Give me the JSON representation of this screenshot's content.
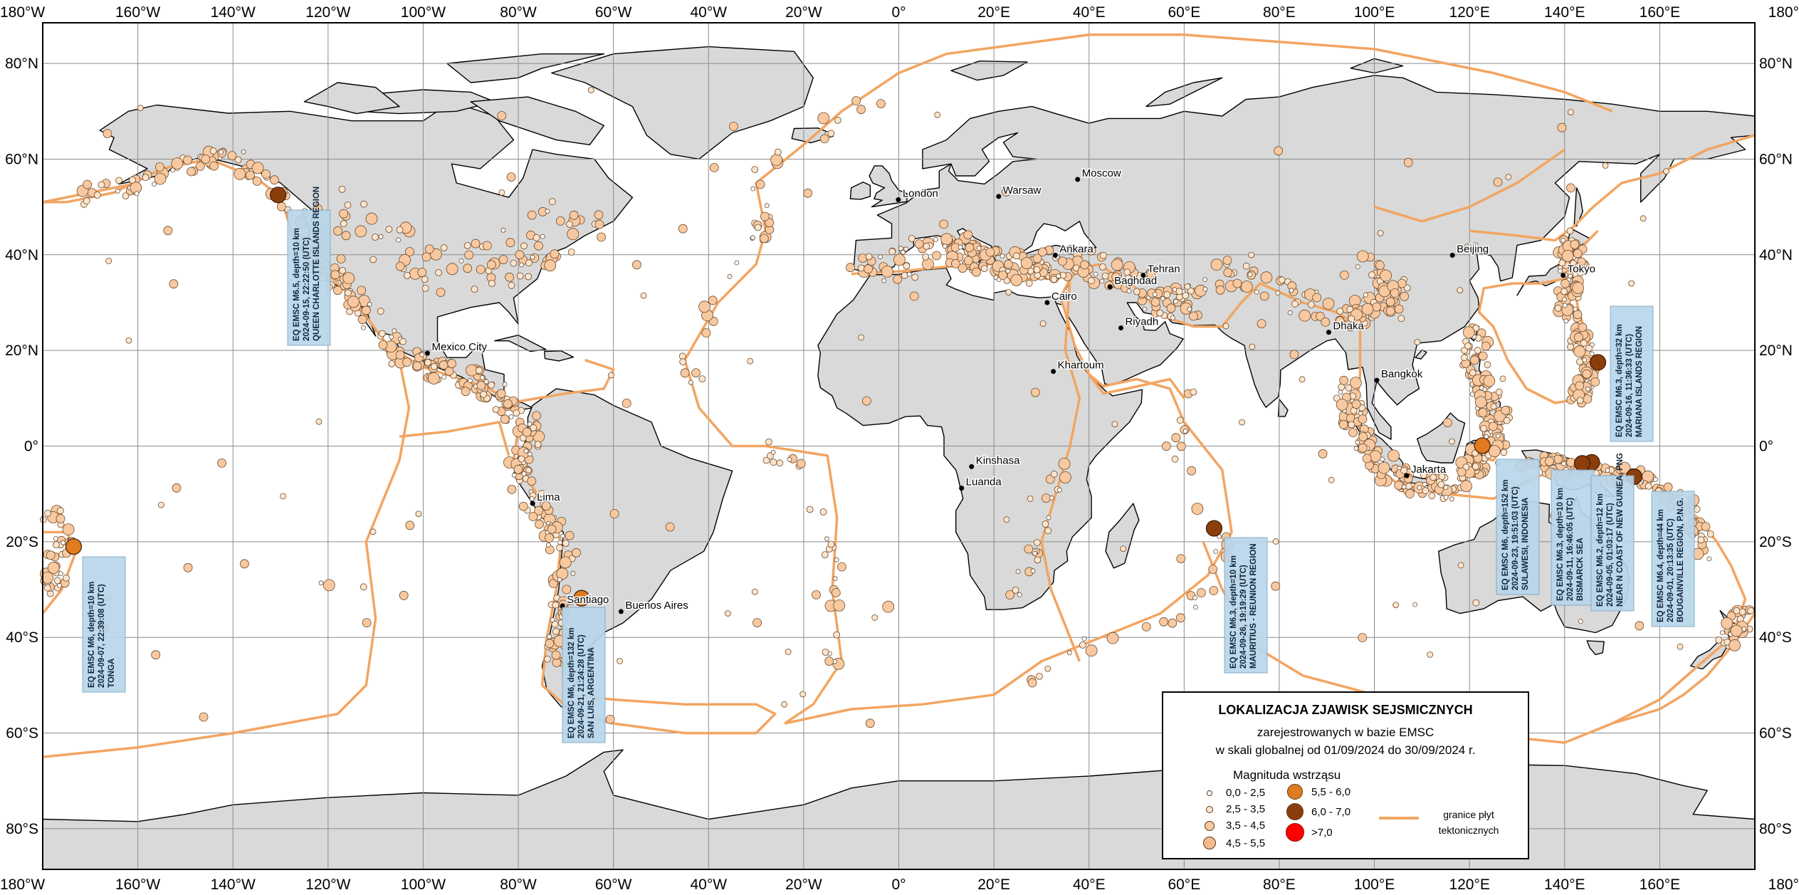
{
  "map": {
    "lon_labels": [
      "180°W",
      "160°W",
      "140°W",
      "120°W",
      "100°W",
      "80°W",
      "60°W",
      "40°W",
      "20°W",
      "0°",
      "20°E",
      "40°E",
      "60°E",
      "80°E",
      "100°E",
      "120°E",
      "140°E",
      "160°E",
      "180°"
    ],
    "lat_labels": [
      "80°N",
      "60°N",
      "40°N",
      "20°N",
      "0°",
      "20°S",
      "40°S",
      "60°S",
      "80°S"
    ],
    "colors": {
      "land": "#d9d9d9",
      "ocean": "#ffffff",
      "plate_line": "#f2a562",
      "event": "#f8c9a0",
      "event_mid": "#e07b1f",
      "event_big": "#8b3e0c",
      "callout_bg": "#b9d6ea"
    },
    "cities": [
      {
        "name": "London",
        "lon": -0.1,
        "lat": 51.5
      },
      {
        "name": "Warsaw",
        "lon": 21.0,
        "lat": 52.2
      },
      {
        "name": "Moscow",
        "lon": 37.6,
        "lat": 55.75
      },
      {
        "name": "Ankara",
        "lon": 32.9,
        "lat": 39.9
      },
      {
        "name": "Baghdad",
        "lon": 44.4,
        "lat": 33.3
      },
      {
        "name": "Tehran",
        "lon": 51.4,
        "lat": 35.7
      },
      {
        "name": "Cairo",
        "lon": 31.2,
        "lat": 30.0
      },
      {
        "name": "Riyadh",
        "lon": 46.7,
        "lat": 24.7
      },
      {
        "name": "Khartoum",
        "lon": 32.5,
        "lat": 15.6
      },
      {
        "name": "Kinshasa",
        "lon": 15.3,
        "lat": -4.3
      },
      {
        "name": "Luanda",
        "lon": 13.2,
        "lat": -8.8
      },
      {
        "name": "Beijing",
        "lon": 116.4,
        "lat": 39.9
      },
      {
        "name": "Tokyo",
        "lon": 139.7,
        "lat": 35.7
      },
      {
        "name": "Dhaka",
        "lon": 90.4,
        "lat": 23.8
      },
      {
        "name": "Bangkok",
        "lon": 100.5,
        "lat": 13.75
      },
      {
        "name": "Jakarta",
        "lon": 106.8,
        "lat": -6.2
      },
      {
        "name": "Mexico City",
        "lon": -99.1,
        "lat": 19.4
      },
      {
        "name": "Lima",
        "lon": -77.0,
        "lat": -12.0
      },
      {
        "name": "Santiago",
        "lon": -70.7,
        "lat": -33.4
      },
      {
        "name": "Buenos Aires",
        "lon": -58.4,
        "lat": -34.6
      }
    ],
    "major_events": [
      {
        "lines": [
          "EQ EMSC M6.5, depth=10 km",
          "2024-09-15, 22:22:50 (UTC)",
          "QUEEN CHARLOTTE ISLANDS REGION"
        ],
        "lon": -130.5,
        "lat": 52.5,
        "mag": 6.5
      },
      {
        "lines": [
          "EQ EMSC M6, depth=10 km",
          "2024-09-07, 22:39:08 (UTC)",
          "TONGA"
        ],
        "lon": -173.5,
        "lat": -21.0,
        "mag": 6.0
      },
      {
        "lines": [
          "EQ EMSC M6, depth=132 km",
          "2024-09-21, 21:24:28 (UTC)",
          "SAN LUIS, ARGENTINA"
        ],
        "lon": -66.7,
        "lat": -31.8,
        "mag": 6.0
      },
      {
        "lines": [
          "EQ EMSC M6.3, depth=10 km",
          "2024-09-26, 19:19:29 (UTC)",
          "MAURITIUS - REUNION REGION"
        ],
        "lon": 66.3,
        "lat": -17.2,
        "mag": 6.3
      },
      {
        "lines": [
          "EQ EMSC M6, depth=152 km",
          "2024-09-23, 19:51:03 (UTC)",
          "SULAWESI, INDONESIA"
        ],
        "lon": 122.7,
        "lat": 0.1,
        "mag": 6.0
      },
      {
        "lines": [
          "EQ EMSC M6.3, depth=10 km",
          "2024-09-11, 16:46:05 (UTC)",
          "BISMARCK SEA"
        ],
        "lon": 145.7,
        "lat": -3.4,
        "mag": 6.3
      },
      {
        "lines": [
          "EQ EMSC M6.2, depth=12 km",
          "2024-09-05, 01:03:17 (UTC)",
          "NEAR N COAST OF NEW GUINEA, PNG"
        ],
        "lon": 143.7,
        "lat": -3.6,
        "mag": 6.2
      },
      {
        "lines": [
          "EQ EMSC M6.4, depth=44 km",
          "2024-09-01, 20:13:35 (UTC)",
          "BOUGAINVILLE REGION, P.N.G."
        ],
        "lon": 154.6,
        "lat": -6.4,
        "mag": 6.4
      },
      {
        "lines": [
          "EQ EMSC M6.3, depth=32 km",
          "2024-09-16, 11:36:33 (UTC)",
          "MARIANA ISLANDS REGION"
        ],
        "lon": 147.0,
        "lat": 17.5,
        "mag": 6.3
      }
    ]
  },
  "legend": {
    "title": "LOKALIZACJA ZJAWISK SEJSMICZNYCH",
    "subtitle_1": "zarejestrowanych w bazie EMSC",
    "subtitle_2": "w skali globalnej od 01/09/2024 do 30/09/2024 r.",
    "magnitude_heading": "Magnituda wstrząsu",
    "classes": [
      {
        "label": "0,0 - 2,5",
        "color": "#ffffff"
      },
      {
        "label": "2,5 - 3,5",
        "color": "#fde4cc"
      },
      {
        "label": "3,5 - 4,5",
        "color": "#f8c9a0"
      },
      {
        "label": "4,5 - 5,5",
        "color": "#f5bb8c"
      },
      {
        "label": "5,5 - 6,0",
        "color": "#e07b1f"
      },
      {
        "label": "6,0 - 7,0",
        "color": "#8b3e0c"
      },
      {
        "label": ">7,0",
        "color": "#ff0000"
      }
    ],
    "plate_label_1": "granice płyt",
    "plate_label_2": "tektonicznych"
  }
}
